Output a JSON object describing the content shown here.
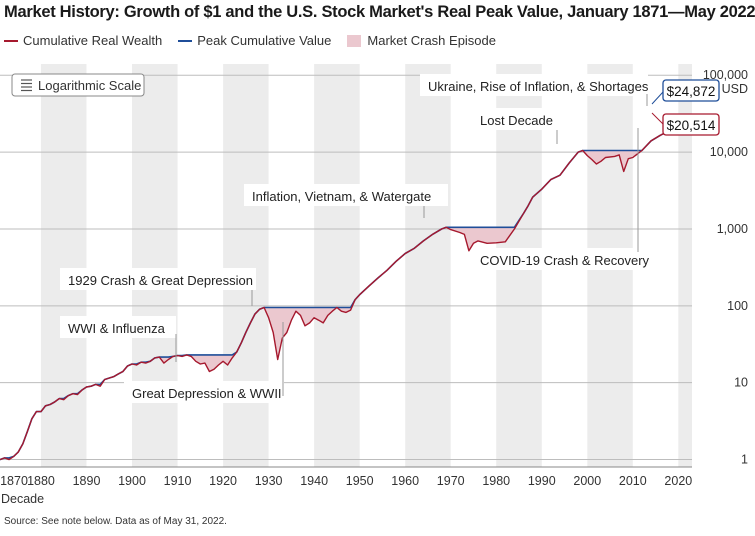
{
  "title": "Market History: Growth of $1 and the U.S. Stock Market's Real Peak Value, January 1871—May 2022",
  "legend": {
    "wealth": "Cumulative Real Wealth",
    "peak": "Peak Cumulative Value",
    "crash": "Market Crash Episode"
  },
  "scale_badge": "Logarithmic Scale",
  "source": "Source: See note below. Data as of May 31, 2022.",
  "colors": {
    "wealth": "#a6192e",
    "peak": "#1f4e99",
    "crash_fill": "#ebc8cf",
    "band": "#ececec"
  },
  "chart_data": {
    "type": "line",
    "title": "Market History: Growth of $1 and the U.S. Stock Market's Real Peak Value, January 1871—May 2022",
    "xlabel": "Decade",
    "ylabel": "USD",
    "yscale": "log",
    "xlim": [
      1871,
      2023
    ],
    "ylim": [
      0.8,
      140000
    ],
    "x_ticks": [
      1870,
      1880,
      1890,
      1900,
      1910,
      1920,
      1930,
      1940,
      1950,
      1960,
      1970,
      1980,
      1990,
      2000,
      2010,
      2020
    ],
    "y_ticks": [
      {
        "value": 1,
        "label": "1"
      },
      {
        "value": 10,
        "label": "10"
      },
      {
        "value": 100,
        "label": "100"
      },
      {
        "value": 1000,
        "label": "1,000"
      },
      {
        "value": 10000,
        "label": "10,000"
      },
      {
        "value": 100000,
        "label": "100,000"
      }
    ],
    "y_unit": "USD",
    "grid": true,
    "series": [
      {
        "name": "Cumulative Real Wealth",
        "x": [
          1871,
          1872,
          1873,
          1874,
          1875,
          1876,
          1877,
          1878,
          1879,
          1880,
          1881,
          1882,
          1883,
          1884,
          1885,
          1886,
          1887,
          1888,
          1889,
          1890,
          1891,
          1892,
          1893,
          1894,
          1895,
          1896,
          1897,
          1898,
          1899,
          1900,
          1901,
          1902,
          1903,
          1904,
          1905,
          1906,
          1907,
          1908,
          1909,
          1910,
          1911,
          1912,
          1913,
          1914,
          1915,
          1916,
          1917,
          1918,
          1919,
          1920,
          1921,
          1922,
          1923,
          1924,
          1925,
          1926,
          1927,
          1928,
          1929,
          1930,
          1931,
          1932,
          1933,
          1934,
          1935,
          1936,
          1937,
          1938,
          1939,
          1940,
          1941,
          1942,
          1943,
          1944,
          1945,
          1946,
          1947,
          1948,
          1949,
          1950,
          1952,
          1954,
          1956,
          1958,
          1960,
          1962,
          1964,
          1966,
          1968,
          1969,
          1970,
          1972,
          1973,
          1974,
          1975,
          1976,
          1978,
          1980,
          1982,
          1984,
          1986,
          1987,
          1988,
          1990,
          1992,
          1994,
          1996,
          1998,
          1999,
          2000,
          2001,
          2002,
          2003,
          2004,
          2006,
          2007,
          2008,
          2009,
          2010,
          2012,
          2014,
          2016,
          2018,
          2019,
          2020,
          2021,
          2022
        ],
        "values": [
          1.0,
          1.05,
          1.0,
          1.1,
          1.25,
          1.6,
          2.3,
          3.4,
          4.2,
          4.2,
          5.0,
          5.2,
          5.6,
          6.2,
          6.0,
          6.8,
          7.2,
          7.0,
          8.0,
          8.8,
          9.0,
          9.5,
          9.0,
          11.0,
          11.5,
          12.0,
          13.0,
          14.0,
          16.5,
          17.5,
          17.0,
          18.5,
          18.0,
          19.0,
          21.0,
          21.5,
          18.0,
          20.0,
          22.0,
          22.5,
          22.0,
          23.0,
          22.0,
          19.0,
          17.5,
          18.0,
          14.0,
          15.0,
          17.0,
          19.0,
          17.0,
          21.0,
          25.0,
          33.0,
          45.0,
          60.0,
          78.0,
          90.0,
          95.0,
          70.0,
          45.0,
          20.0,
          38.0,
          45.0,
          65.0,
          85.0,
          75.0,
          55.0,
          60.0,
          70.0,
          65.0,
          60.0,
          75.0,
          85.0,
          95.0,
          85.0,
          82.0,
          88.0,
          120.0,
          140.0,
          180.0,
          230.0,
          290.0,
          380.0,
          480.0,
          560.0,
          700.0,
          850.0,
          1000.0,
          1050.0,
          980.0,
          900.0,
          850.0,
          520.0,
          650.0,
          700.0,
          650.0,
          660.0,
          680.0,
          1000.0,
          1600.0,
          2000.0,
          2600.0,
          3300.0,
          4400.0,
          5000.0,
          7200.0,
          10000.0,
          10500.0,
          9000.0,
          8000.0,
          7000.0,
          7600.0,
          8500.0,
          8800.0,
          9200.0,
          5600.0,
          8200.0,
          8500.0,
          10500.0,
          14000.0,
          16500.0,
          19000.0,
          20500.0,
          24872.0,
          24872.0,
          20514.0
        ]
      },
      {
        "name": "Peak Cumulative Value",
        "x": [
          1871,
          1872,
          1873,
          1874,
          1875,
          1876,
          1877,
          1878,
          1879,
          1880,
          1881,
          1882,
          1883,
          1884,
          1885,
          1886,
          1887,
          1888,
          1889,
          1890,
          1891,
          1892,
          1893,
          1894,
          1895,
          1896,
          1897,
          1898,
          1899,
          1900,
          1901,
          1902,
          1903,
          1904,
          1905,
          1906,
          1907,
          1908,
          1909,
          1910,
          1911,
          1912,
          1913,
          1914,
          1915,
          1916,
          1917,
          1918,
          1919,
          1920,
          1921,
          1922,
          1923,
          1924,
          1925,
          1926,
          1927,
          1928,
          1929,
          1930,
          1931,
          1932,
          1933,
          1934,
          1935,
          1936,
          1937,
          1938,
          1939,
          1940,
          1941,
          1942,
          1943,
          1944,
          1945,
          1946,
          1947,
          1948,
          1949,
          1950,
          1952,
          1954,
          1956,
          1958,
          1960,
          1962,
          1964,
          1966,
          1968,
          1969,
          1970,
          1972,
          1973,
          1974,
          1975,
          1976,
          1978,
          1980,
          1982,
          1984,
          1986,
          1987,
          1988,
          1990,
          1992,
          1994,
          1996,
          1998,
          1999,
          2000,
          2001,
          2002,
          2003,
          2004,
          2006,
          2007,
          2008,
          2009,
          2010,
          2012,
          2014,
          2016,
          2018,
          2019,
          2020,
          2021,
          2022
        ],
        "values": [
          1.0,
          1.05,
          1.05,
          1.1,
          1.25,
          1.6,
          2.3,
          3.4,
          4.2,
          4.2,
          5.0,
          5.2,
          5.6,
          6.2,
          6.2,
          6.8,
          7.2,
          7.2,
          8.0,
          8.8,
          9.0,
          9.5,
          9.5,
          11.0,
          11.5,
          12.0,
          13.0,
          14.0,
          16.5,
          17.5,
          17.5,
          18.5,
          18.5,
          19.0,
          21.0,
          21.5,
          21.5,
          21.5,
          22.0,
          22.5,
          22.5,
          23.0,
          23.0,
          23.0,
          23.0,
          23.0,
          23.0,
          23.0,
          23.0,
          23.0,
          23.0,
          23.0,
          25.0,
          33.0,
          45.0,
          60.0,
          78.0,
          90.0,
          95.0,
          95.0,
          95.0,
          95.0,
          95.0,
          95.0,
          95.0,
          95.0,
          95.0,
          95.0,
          95.0,
          95.0,
          95.0,
          95.0,
          95.0,
          95.0,
          95.0,
          95.0,
          95.0,
          95.0,
          120.0,
          140.0,
          180.0,
          230.0,
          290.0,
          380.0,
          480.0,
          560.0,
          700.0,
          850.0,
          1000.0,
          1050.0,
          1050.0,
          1050.0,
          1050.0,
          1050.0,
          1050.0,
          1050.0,
          1050.0,
          1050.0,
          1050.0,
          1050.0,
          1600.0,
          2000.0,
          2600.0,
          3300.0,
          4400.0,
          5000.0,
          7200.0,
          10000.0,
          10500.0,
          10500.0,
          10500.0,
          10500.0,
          10500.0,
          10500.0,
          10500.0,
          10500.0,
          10500.0,
          10500.0,
          10500.0,
          10500.0,
          14000.0,
          16500.0,
          19000.0,
          20500.0,
          24872.0,
          24872.0,
          24872.0
        ]
      }
    ],
    "decade_bands": [
      1880,
      1900,
      1920,
      1940,
      1960,
      1980,
      2000,
      2020
    ],
    "annotations": [
      {
        "text": "WWI & Influenza",
        "x": 1916
      },
      {
        "text": "1929 Crash & Great Depression",
        "x": 1930
      },
      {
        "text": "Great Depression & WWII",
        "x": 1938
      },
      {
        "text": "Inflation, Vietnam, & Watergate",
        "x": 1973
      },
      {
        "text": "Lost Decade",
        "x": 2001
      },
      {
        "text": "COVID-19 Crash & Recovery",
        "x": 2020
      },
      {
        "text": "Ukraine, Rise of Inflation, & Shortages",
        "x": 2022
      }
    ],
    "callouts": [
      {
        "text": "$24,872",
        "series": "Peak Cumulative Value",
        "value": 24872
      },
      {
        "text": "$20,514",
        "series": "Cumulative Real Wealth",
        "value": 20514
      }
    ]
  }
}
